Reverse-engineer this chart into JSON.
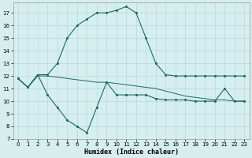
{
  "xlabel": "Humidex (Indice chaleur)",
  "line_top_x": [
    0,
    1,
    2,
    3,
    4,
    5,
    6,
    7,
    8,
    9,
    10,
    11,
    12,
    13,
    14,
    15,
    16,
    17,
    18,
    19,
    20,
    21,
    22,
    23
  ],
  "line_top": [
    11.8,
    11.1,
    12.1,
    12.1,
    13.0,
    15.0,
    16.0,
    16.5,
    17.0,
    17.0,
    17.2,
    17.5,
    17.0,
    15.0,
    13.0,
    12.1,
    12.0,
    12.0,
    12.0,
    12.0,
    12.0,
    12.0,
    12.0,
    12.0
  ],
  "line_mid_x": [
    0,
    1,
    2,
    3,
    4,
    5,
    6,
    7,
    8,
    9,
    10,
    11,
    12,
    13,
    14,
    15,
    16,
    17,
    18,
    19,
    20,
    21,
    22,
    23
  ],
  "line_mid": [
    11.8,
    11.1,
    12.0,
    12.0,
    11.9,
    11.8,
    11.7,
    11.6,
    11.5,
    11.5,
    11.4,
    11.3,
    11.2,
    11.1,
    11.0,
    10.8,
    10.6,
    10.4,
    10.3,
    10.2,
    10.1,
    10.1,
    10.0,
    10.0
  ],
  "line_bot_x": [
    0,
    1,
    2,
    3,
    4,
    5,
    6,
    7,
    8,
    9,
    10,
    11,
    12,
    13,
    14,
    15,
    16,
    17,
    18,
    19,
    20,
    21,
    22,
    23
  ],
  "line_bot": [
    11.8,
    11.1,
    12.1,
    10.5,
    9.5,
    8.5,
    8.0,
    7.5,
    9.5,
    11.5,
    10.5,
    10.5,
    10.5,
    10.5,
    10.2,
    10.1,
    10.1,
    10.1,
    10.0,
    10.0,
    10.0,
    11.0,
    10.0,
    10.0
  ],
  "bg_color": "#d6eeee",
  "line_color": "#1a6b5a",
  "grid_color": "#b8d8d8",
  "ylim": [
    7,
    17.8
  ],
  "xlim": [
    -0.5,
    23.5
  ],
  "yticks": [
    7,
    8,
    9,
    10,
    11,
    12,
    13,
    14,
    15,
    16,
    17
  ],
  "xticks": [
    0,
    1,
    2,
    3,
    4,
    5,
    6,
    7,
    8,
    9,
    10,
    11,
    12,
    13,
    14,
    15,
    16,
    17,
    18,
    19,
    20,
    21,
    22,
    23
  ]
}
